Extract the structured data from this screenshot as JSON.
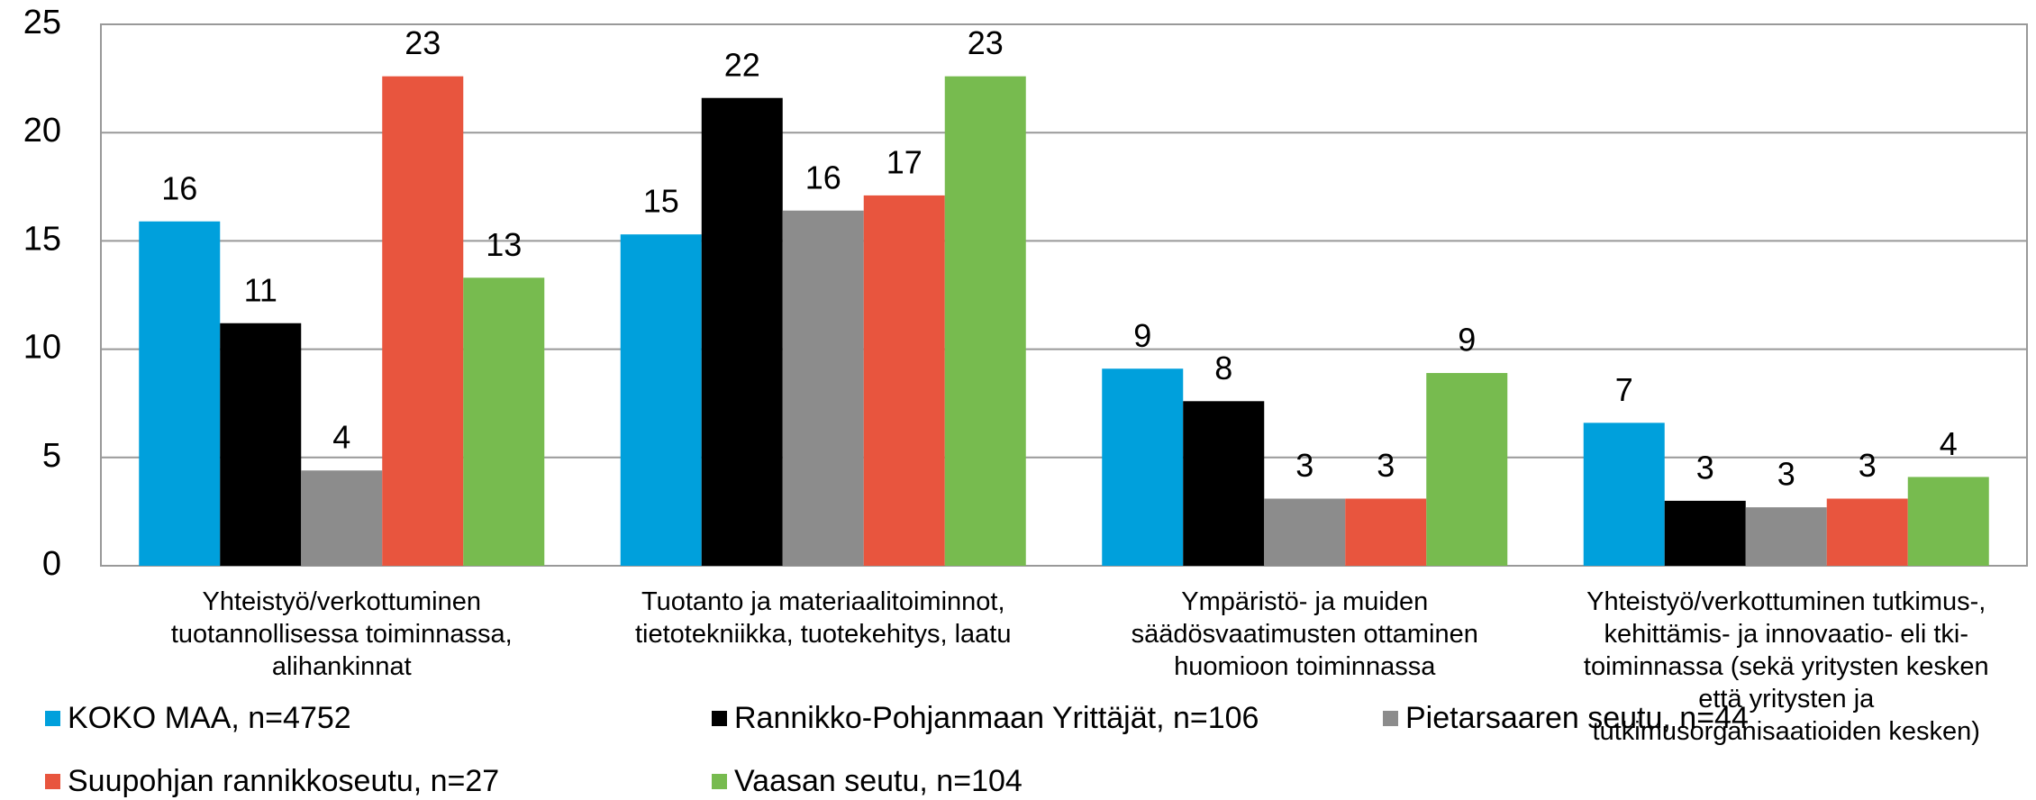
{
  "chart_data": {
    "type": "bar",
    "categories": [
      "Yhteistyö/verkottuminen\ntuotannollisessa toiminnassa,\nalihankinnat",
      "Tuotanto ja materiaalitoiminnot,\ntietotekniikka, tuotekehitys, laatu",
      "Ympäristö- ja muiden\nsäädösvaatimusten ottaminen\nhuomioon toiminnassa",
      "Yhteistyö/verkottuminen tutkimus-,\nkehittämis- ja innovaatio- eli tki-\ntoiminnassa (sekä yritysten kesken\nettä yritysten ja\ntutkimusorganisaatioiden kesken)"
    ],
    "series": [
      {
        "name": "KOKO MAA, n=4752",
        "color": "#00a0dc",
        "values": [
          15.9,
          15.3,
          9.1,
          6.6
        ],
        "value_labels": [
          "16",
          "15",
          "9",
          "7"
        ]
      },
      {
        "name": "Rannikko-Pohjanmaan Yrittäjät, n=106",
        "color": "#000000",
        "values": [
          11.2,
          21.6,
          7.6,
          3.0
        ],
        "value_labels": [
          "11",
          "22",
          "8",
          "3"
        ]
      },
      {
        "name": "Pietarsaaren seutu, n=44",
        "color": "#8c8c8c",
        "values": [
          4.4,
          16.4,
          3.1,
          2.7
        ],
        "value_labels": [
          "4",
          "16",
          "3",
          "3"
        ]
      },
      {
        "name": "Suupohjan rannikkoseutu, n=27",
        "color": "#e8553e",
        "values": [
          22.6,
          17.1,
          3.1,
          3.1
        ],
        "value_labels": [
          "23",
          "17",
          "3",
          "3"
        ]
      },
      {
        "name": "Vaasan seutu, n=104",
        "color": "#77bb4f",
        "values": [
          13.3,
          22.6,
          8.9,
          4.1
        ],
        "value_labels": [
          "13",
          "23",
          "9",
          "4"
        ]
      }
    ],
    "ylim": [
      0,
      25
    ],
    "yticks": [
      0,
      5,
      10,
      15,
      20,
      25
    ],
    "grid": true,
    "legend": "bottom"
  }
}
